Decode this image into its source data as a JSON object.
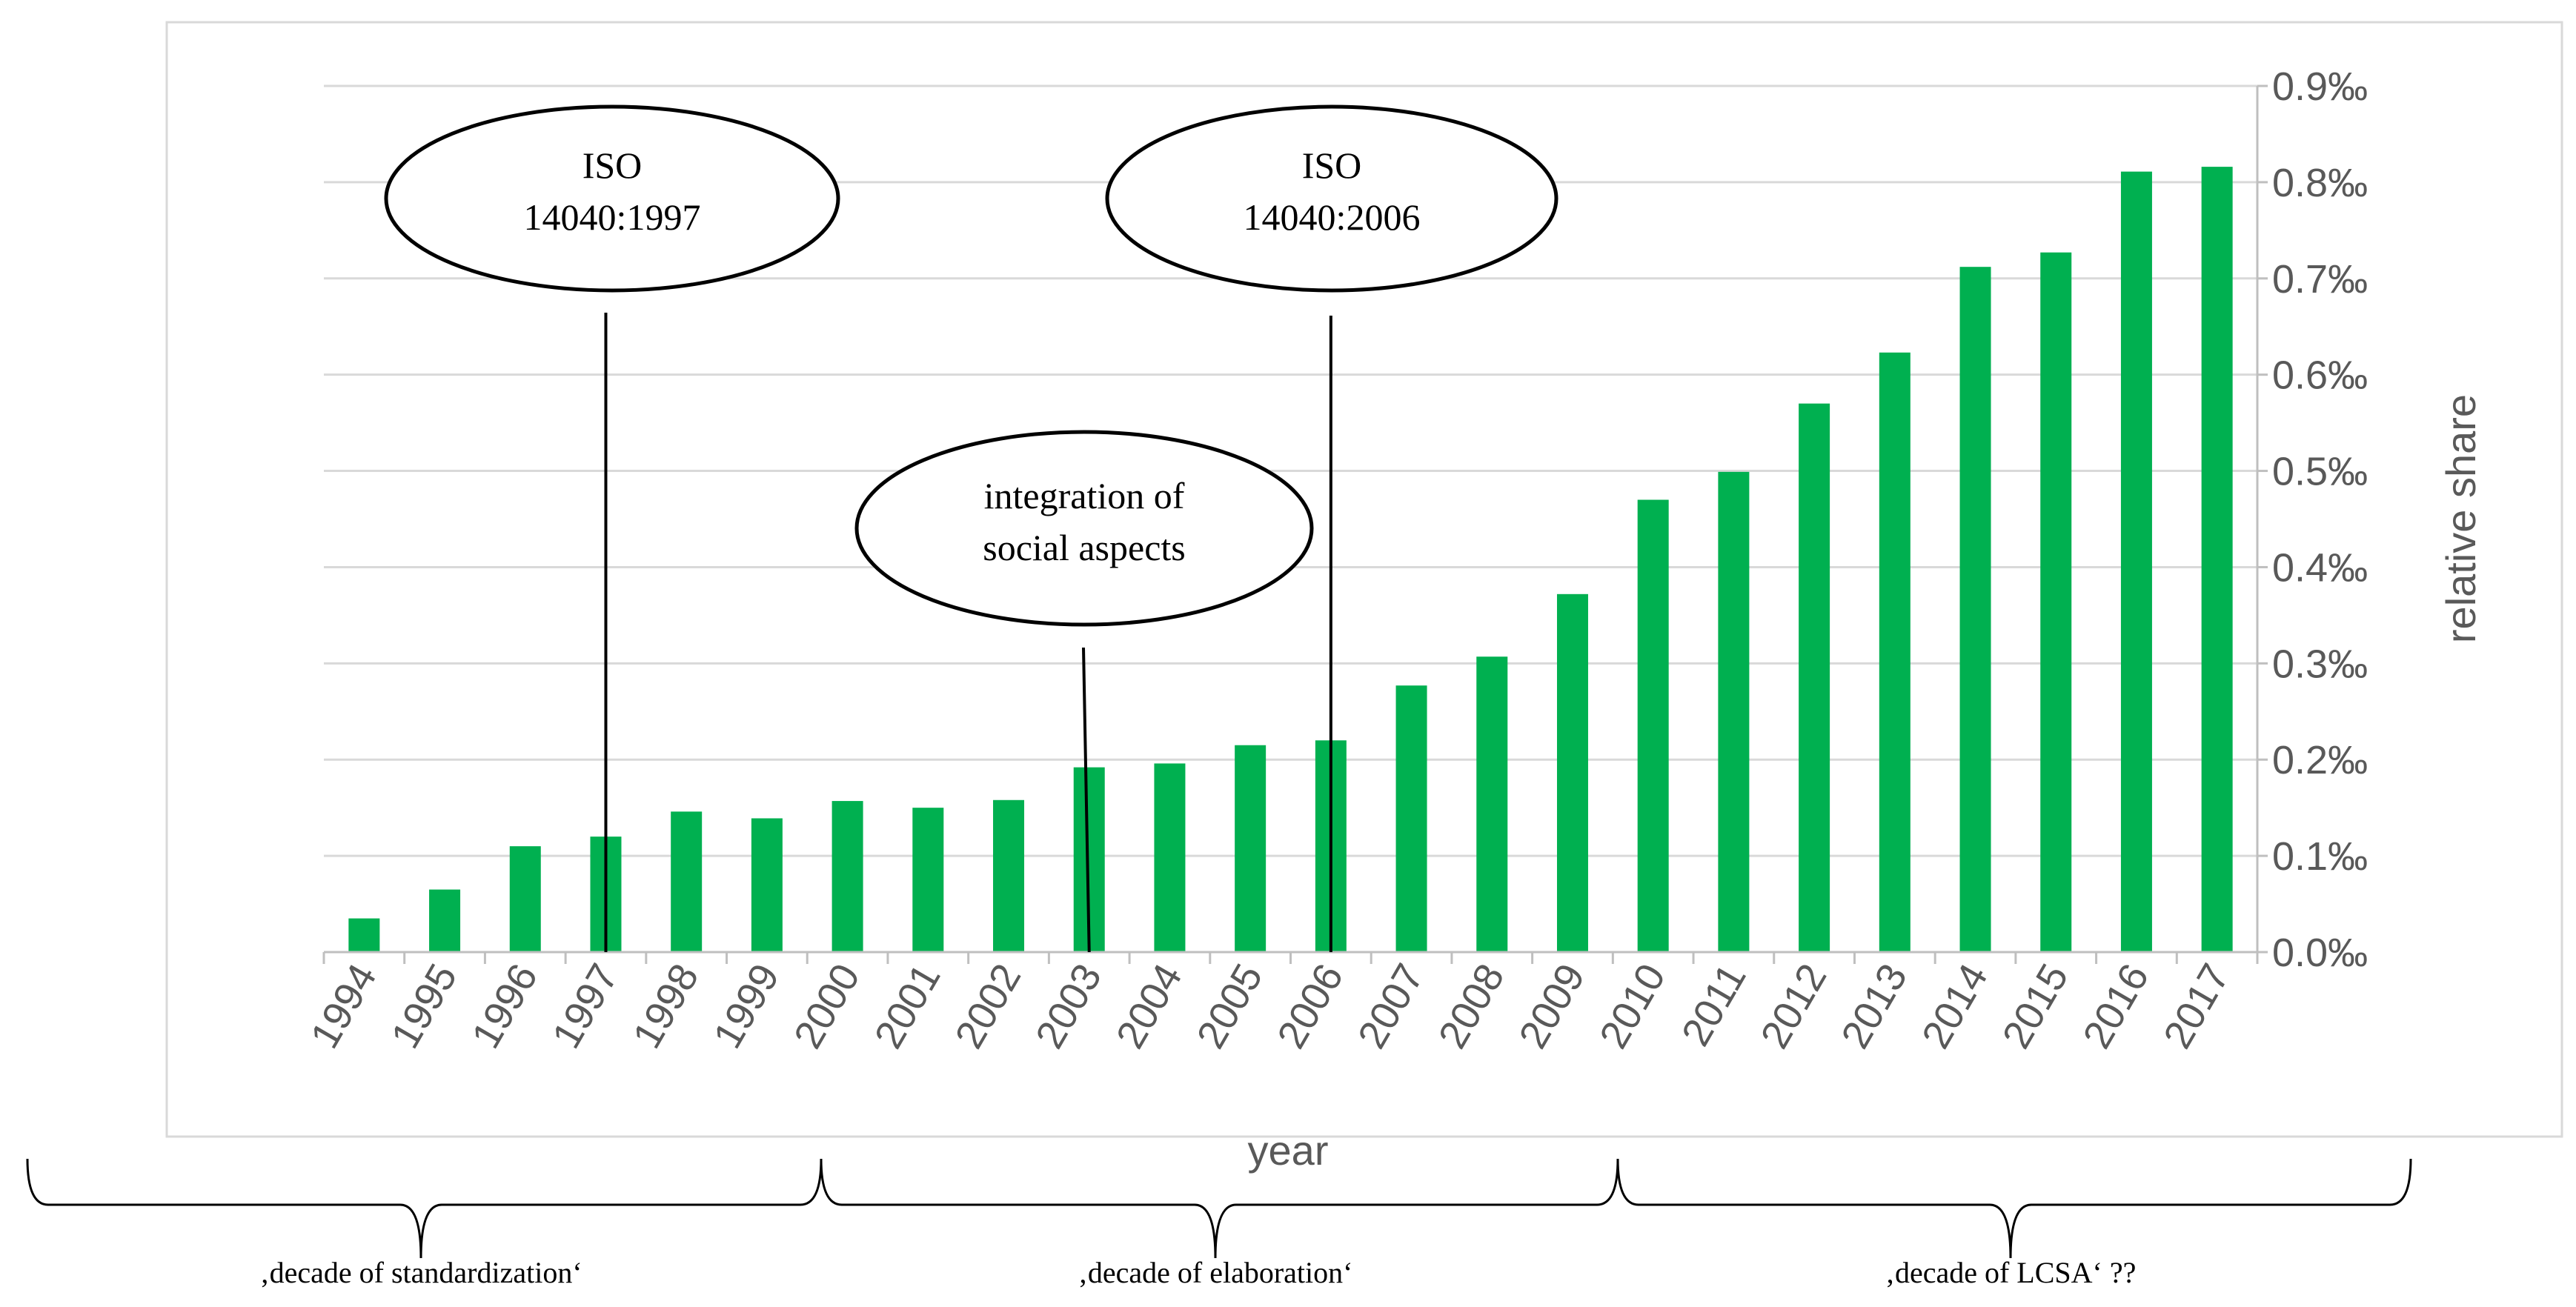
{
  "chart_data": {
    "type": "bar",
    "categories": [
      "1994",
      "1995",
      "1996",
      "1997",
      "1998",
      "1999",
      "2000",
      "2001",
      "2002",
      "2003",
      "2004",
      "2005",
      "2006",
      "2007",
      "2008",
      "2009",
      "2010",
      "2011",
      "2012",
      "2013",
      "2014",
      "2015",
      "2016",
      "2017"
    ],
    "values": [
      0.035,
      0.065,
      0.11,
      0.12,
      0.146,
      0.139,
      0.157,
      0.15,
      0.158,
      0.192,
      0.196,
      0.215,
      0.22,
      0.277,
      0.307,
      0.372,
      0.47,
      0.499,
      0.57,
      0.623,
      0.712,
      0.727,
      0.811,
      0.816
    ],
    "ylim": [
      0,
      0.9
    ],
    "yticks": [
      0,
      0.1,
      0.2,
      0.3,
      0.4,
      0.5,
      0.6,
      0.7,
      0.8,
      0.9
    ],
    "ytick_labels": [
      "0.0‰",
      "0.1‰",
      "0.2‰",
      "0.3‰",
      "0.4‰",
      "0.5‰",
      "0.6‰",
      "0.7‰",
      "0.8‰",
      "0.9‰"
    ],
    "xlabel": "year",
    "ylabel": "relative share",
    "bar_color": "#00b050",
    "grid": true,
    "annotations": [
      {
        "lines": [
          "ISO",
          "14040:1997"
        ],
        "year": "1997"
      },
      {
        "lines": [
          "ISO",
          "14040:2006"
        ],
        "year": "2006"
      },
      {
        "lines": [
          "integration of",
          "social aspects"
        ],
        "year": "2003"
      }
    ],
    "decades": [
      {
        "label": "‚decade of standardization‘"
      },
      {
        "label": "‚decade of elaboration‘"
      },
      {
        "label": "‚decade of LCSA‘ ??"
      }
    ]
  }
}
